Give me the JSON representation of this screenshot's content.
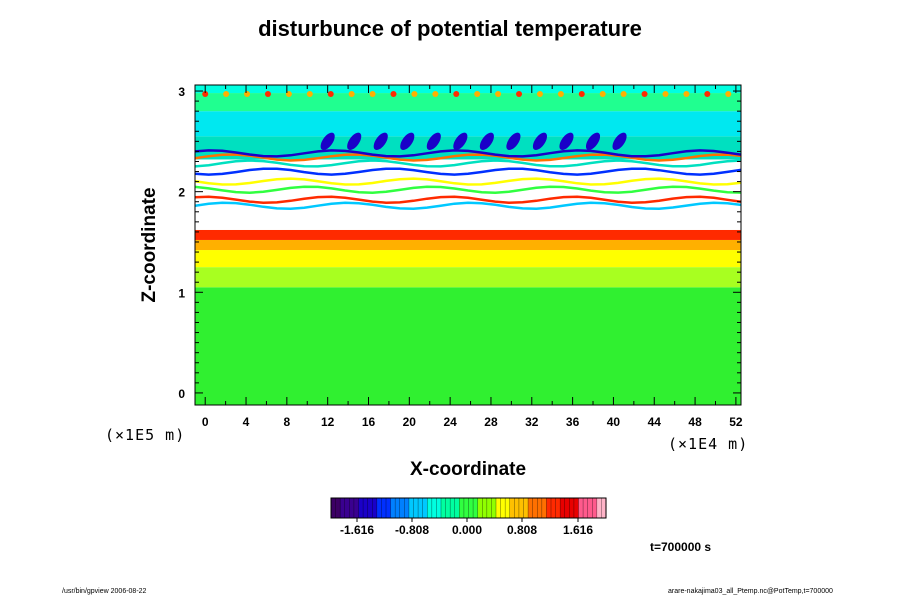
{
  "chart_data": {
    "type": "heatmap",
    "title": "disturbunce of potential temperature",
    "xlabel": "X-coordinate",
    "ylabel": "Z-coordinate",
    "x_unit": "(×1E4 m)",
    "y_unit": "(×1E5 m)",
    "xlim": [
      -1,
      52.5
    ],
    "ylim": [
      -0.12,
      3.06
    ],
    "x_ticks": [
      0,
      4,
      8,
      12,
      16,
      20,
      24,
      28,
      32,
      36,
      40,
      44,
      48,
      52
    ],
    "y_ticks": [
      0,
      1,
      2,
      3
    ],
    "colorbar": {
      "ticks": [
        "-1.616",
        "-0.808",
        "0.000",
        "0.808",
        "1.616"
      ],
      "colors": [
        "#3c0064",
        "#3a0090",
        "#1a00c8",
        "#0030ff",
        "#0080ff",
        "#00c8ff",
        "#00ffe0",
        "#00ffa0",
        "#30ff40",
        "#90ff00",
        "#ffff00",
        "#ffc000",
        "#ff7000",
        "#ff2a00",
        "#e80000",
        "#ff5a8c",
        "#ffb4c8"
      ]
    },
    "bands": [
      {
        "z0": -0.12,
        "z1": 1.05,
        "color": "#30f030"
      },
      {
        "z0": 1.05,
        "z1": 1.25,
        "color": "#a8ff20"
      },
      {
        "z0": 1.25,
        "z1": 1.42,
        "color": "#ffff00"
      },
      {
        "z0": 1.42,
        "z1": 1.52,
        "color": "#ffb000"
      },
      {
        "z0": 1.52,
        "z1": 1.62,
        "color": "#ff2a00"
      },
      {
        "z0": 1.62,
        "z1": 2.32,
        "color": "#ffffff"
      },
      {
        "z0": 2.32,
        "z1": 2.55,
        "color": "#00e0c0"
      },
      {
        "z0": 2.55,
        "z1": 2.8,
        "color": "#00e8f0"
      },
      {
        "z0": 2.8,
        "z1": 2.98,
        "color": "#20ff90"
      },
      {
        "z0": 2.98,
        "z1": 3.06,
        "color": "#00ffe0"
      }
    ],
    "time_label": "t=700000 s"
  },
  "footer": {
    "left": "/usr/bin/gpview 2006-08-22",
    "right": "arare-nakajima03_all_Ptemp.nc@PotTemp,t=700000"
  },
  "colors": {
    "frame": "#000000",
    "white_band": "#ffffff"
  }
}
